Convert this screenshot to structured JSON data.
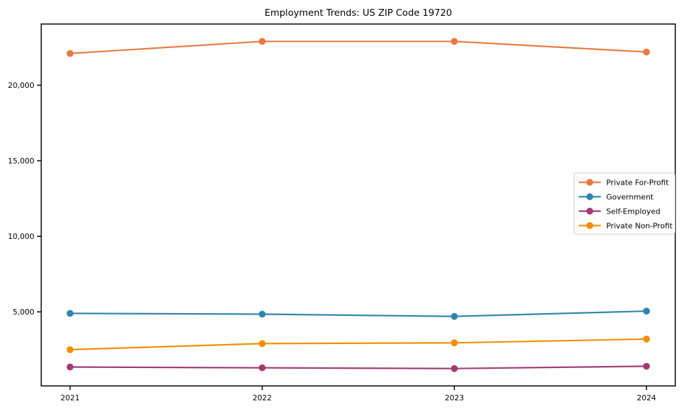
{
  "window": {
    "background_color": "#ffffff"
  },
  "chart_data": {
    "type": "line",
    "title": "Employment Trends: US ZIP Code 19720",
    "xlabel": "",
    "ylabel": "",
    "categories": [
      "2021",
      "2022",
      "2023",
      "2024"
    ],
    "series": [
      {
        "name": "Private For-Profit",
        "color": "#E87A41",
        "values": [
          22100,
          22900,
          22900,
          22200
        ]
      },
      {
        "name": "Government",
        "color": "#2E86AB",
        "values": [
          4900,
          4850,
          4700,
          5050
        ]
      },
      {
        "name": "Self-Employed",
        "color": "#A23B72",
        "values": [
          1350,
          1300,
          1250,
          1400
        ]
      },
      {
        "name": "Private Non-Profit",
        "color": "#F18F01",
        "values": [
          2500,
          2900,
          2950,
          3200
        ]
      }
    ],
    "yticks": [
      5000,
      10000,
      15000,
      20000
    ],
    "ytick_labels": [
      "5,000",
      "10,000",
      "15,000",
      "20,000"
    ],
    "ylim": [
      100,
      24050
    ],
    "grid": false,
    "legend_position": "center-right",
    "marker": "circle",
    "axis_color": "#000000",
    "legend_border_color": "#cccccc",
    "legend_background": "#ffffff"
  }
}
